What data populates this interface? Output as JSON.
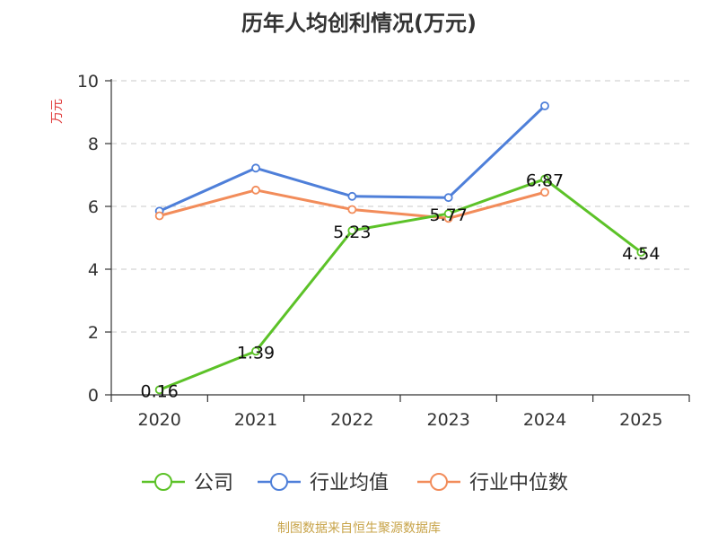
{
  "chart_data": {
    "type": "line",
    "title": "历年人均创利情况(万元)",
    "ylabel": "万元",
    "categories": [
      "2020",
      "2021",
      "2022",
      "2023",
      "2024",
      "2025"
    ],
    "ylim": [
      0,
      10
    ],
    "yticks": [
      0,
      2,
      4,
      6,
      8,
      10
    ],
    "grid": true,
    "legend_position": "bottom",
    "series": [
      {
        "name": "公司",
        "color": "#5cc228",
        "values": [
          0.16,
          1.39,
          5.23,
          5.77,
          6.87,
          4.54
        ],
        "labels": [
          "0.16",
          "1.39",
          "5.23",
          "5.77",
          "6.87",
          "4.54"
        ]
      },
      {
        "name": "行业均值",
        "color": "#4e7fd9",
        "values": [
          5.85,
          7.22,
          6.32,
          6.28,
          9.2,
          null
        ]
      },
      {
        "name": "行业中位数",
        "color": "#f28c5a",
        "values": [
          5.7,
          6.52,
          5.9,
          5.62,
          6.45,
          null
        ]
      }
    ]
  },
  "source": "制图数据来自恒生聚源数据库"
}
